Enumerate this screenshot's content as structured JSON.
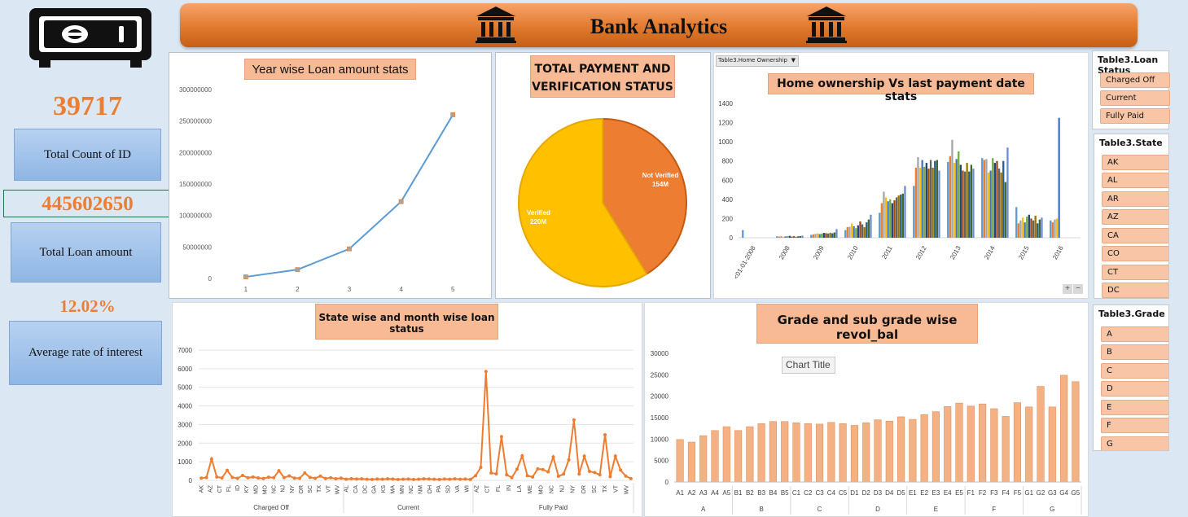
{
  "banner": {
    "title": "Bank Analytics"
  },
  "kpis": [
    {
      "value": "39717",
      "label": "Total Count of ID"
    },
    {
      "value": "445602650",
      "label": "Total Loan amount"
    },
    {
      "value": "12.02%",
      "label": "Average rate of interest"
    }
  ],
  "colors": {
    "accent": "#ed7d31",
    "line": "#5b9bd5",
    "verified": "#ffc000",
    "not_verified": "#ed7d31",
    "bar": "#f4b183"
  },
  "year_chart": {
    "title": "Year wise Loan amount stats",
    "chart_data": {
      "type": "line",
      "categories": [
        "1",
        "2",
        "3",
        "4",
        "5"
      ],
      "values": [
        2500000,
        14000000,
        47000000,
        122000000,
        260000000
      ],
      "ylim": [
        0,
        300000000
      ],
      "yticks": [
        "0",
        "50000000",
        "100000000",
        "150000000",
        "200000000",
        "250000000",
        "300000000"
      ]
    }
  },
  "payment_chart": {
    "title_line1": "TOTAL PAYMENT AND",
    "title_line2": "VERIFICATION STATUS",
    "chart_data": {
      "type": "pie",
      "slices": [
        {
          "label": "Verified",
          "value": 220,
          "display": "220M"
        },
        {
          "label": "Not Verified",
          "value": 154,
          "display": "154M"
        }
      ]
    }
  },
  "home_chart": {
    "filter_label": "Table3.Home Ownership",
    "title": "Home ownership Vs last payment date stats",
    "chart_data": {
      "type": "bar",
      "categories": [
        "<01-01-2008",
        "2008",
        "2009",
        "2010",
        "2011",
        "2012",
        "2013",
        "2014",
        "2015",
        "2016"
      ],
      "ylim": [
        0,
        1400
      ],
      "yticks": [
        "0",
        "200",
        "400",
        "600",
        "800",
        "1000",
        "1200",
        "1400"
      ],
      "series_colors": [
        "#5b9bd5",
        "#ed7d31",
        "#a5a5a5",
        "#ffc000",
        "#4472c4",
        "#70ad47",
        "#264478",
        "#9e480e",
        "#636363",
        "#997300",
        "#255e91",
        "#43682b",
        "#698ed0"
      ],
      "group_values": [
        [
          80,
          0,
          0,
          0,
          0,
          0,
          0,
          0,
          0,
          0,
          0,
          0,
          0
        ],
        [
          15,
          12,
          18,
          10,
          14,
          16,
          20,
          12,
          18,
          10,
          15,
          17,
          22
        ],
        [
          30,
          35,
          40,
          45,
          38,
          42,
          50,
          48,
          44,
          52,
          46,
          55,
          90
        ],
        [
          80,
          110,
          115,
          150,
          120,
          100,
          130,
          170,
          140,
          110,
          160,
          190,
          240
        ],
        [
          260,
          360,
          480,
          420,
          380,
          400,
          360,
          390,
          420,
          440,
          450,
          460,
          540
        ],
        [
          540,
          730,
          840,
          730,
          810,
          740,
          780,
          720,
          810,
          730,
          800,
          810,
          700
        ],
        [
          790,
          850,
          1020,
          780,
          820,
          900,
          760,
          700,
          690,
          780,
          690,
          760,
          720
        ],
        [
          830,
          810,
          820,
          680,
          700,
          830,
          780,
          800,
          720,
          680,
          800,
          580,
          940
        ],
        [
          320,
          150,
          180,
          210,
          160,
          220,
          240,
          200,
          180,
          230,
          150,
          190,
          210
        ],
        [
          180,
          160,
          190,
          200,
          1250,
          0,
          0,
          0,
          0,
          0,
          0,
          0,
          0
        ]
      ]
    }
  },
  "state_chart": {
    "title": "State wise and month wise loan status",
    "chart_data": {
      "type": "line",
      "groups": [
        {
          "name": "Charged Off",
          "states": [
            "AK",
            "AZ",
            "CT",
            "FL",
            "ID",
            "KY",
            "MD",
            "MO",
            "NC",
            "NJ",
            "NY",
            "OR",
            "SC",
            "TX",
            "VT",
            "WV"
          ],
          "values": [
            120,
            150,
            1150,
            180,
            130,
            540,
            160,
            110,
            260,
            140,
            180,
            130,
            100,
            170,
            140,
            520,
            150,
            240,
            120,
            110,
            400,
            160,
            110,
            230,
            100,
            140,
            90,
            120
          ]
        },
        {
          "name": "Current",
          "states": [
            "AL",
            "CA",
            "DC",
            "GA",
            "KS",
            "MA",
            "MN",
            "NC",
            "NM",
            "OH",
            "PA",
            "SD",
            "VA",
            "WI"
          ],
          "values": [
            60,
            90,
            70,
            80,
            60,
            50,
            70,
            60,
            80,
            70,
            50,
            60,
            70,
            50,
            60,
            80,
            70,
            60,
            50,
            70,
            60,
            80,
            60,
            70,
            50
          ]
        },
        {
          "name": "Fully Paid",
          "states": [
            "AZ",
            "CT",
            "FL",
            "IN",
            "LA",
            "ME",
            "MO",
            "NC",
            "NJ",
            "NY",
            "OR",
            "SC",
            "TX",
            "VT",
            "WV"
          ],
          "values": [
            250,
            700,
            5850,
            400,
            350,
            2350,
            300,
            150,
            600,
            1320,
            250,
            180,
            620,
            580,
            460,
            1260,
            220,
            340,
            1100,
            3250,
            340,
            1300,
            480,
            420,
            300,
            2450,
            200,
            1300,
            550,
            230,
            100
          ]
        }
      ],
      "ylim": [
        0,
        7000
      ],
      "yticks": [
        "0",
        "1000",
        "2000",
        "3000",
        "4000",
        "5000",
        "6000",
        "7000"
      ]
    }
  },
  "grade_chart": {
    "title": "Grade and sub grade wise revol_bal",
    "overlay_title": "Chart Title",
    "chart_data": {
      "type": "bar",
      "groups": [
        {
          "name": "A",
          "subs": [
            "A1",
            "A2",
            "A3",
            "A4",
            "A5"
          ],
          "values": [
            9900,
            9300,
            10800,
            12000,
            12900
          ]
        },
        {
          "name": "B",
          "subs": [
            "B1",
            "B2",
            "B3",
            "B4",
            "B5"
          ],
          "values": [
            12000,
            12900,
            13600,
            14100,
            14100
          ]
        },
        {
          "name": "C",
          "subs": [
            "C1",
            "C2",
            "C3",
            "C4",
            "C5"
          ],
          "values": [
            13800,
            13600,
            13500,
            13900,
            13600
          ]
        },
        {
          "name": "D",
          "subs": [
            "D1",
            "D2",
            "D3",
            "D4",
            "D5"
          ],
          "values": [
            13200,
            13800,
            14500,
            14200,
            15200
          ]
        },
        {
          "name": "E",
          "subs": [
            "E1",
            "E2",
            "E3",
            "E4",
            "E5"
          ],
          "values": [
            14600,
            15700,
            16400,
            17600,
            18400
          ]
        },
        {
          "name": "F",
          "subs": [
            "F1",
            "F2",
            "F3",
            "F4",
            "F5"
          ],
          "values": [
            17700,
            18200,
            17100,
            15300,
            18500
          ]
        },
        {
          "name": "G",
          "subs": [
            "G1",
            "G2",
            "G3",
            "G4",
            "G5"
          ],
          "values": [
            17500,
            22300,
            17500,
            24900,
            23400
          ]
        }
      ],
      "ylim": [
        0,
        30000
      ],
      "yticks": [
        "0",
        "5000",
        "10000",
        "15000",
        "20000",
        "25000",
        "30000"
      ]
    }
  },
  "slicers": {
    "loan_status": {
      "title": "Table3.Loan Status",
      "items": [
        "Charged Off",
        "Current",
        "Fully Paid"
      ]
    },
    "state": {
      "title": "Table3.State",
      "items": [
        "AK",
        "AL",
        "AR",
        "AZ",
        "CA",
        "CO",
        "CT",
        "DC"
      ]
    },
    "grade": {
      "title": "Table3.Grade",
      "items": [
        "A",
        "B",
        "C",
        "D",
        "E",
        "F",
        "G"
      ]
    }
  }
}
